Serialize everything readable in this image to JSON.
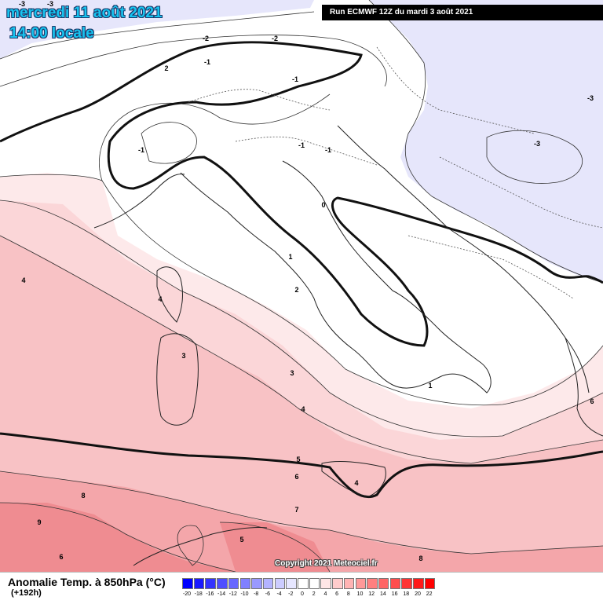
{
  "header": {
    "date": "mercredi 11 août 2021",
    "time": "14:00 locale",
    "run": "Run ECMWF 12Z du mardi 3 août 2021"
  },
  "copyright": "Copyright 2021 Meteociel.fr",
  "legend": {
    "title": "Anomalie Temp. à 850hPa (°C)",
    "subtitle": "(+192h)",
    "ticks": [
      "-20",
      "-18",
      "-16",
      "-14",
      "-12",
      "-10",
      "-8",
      "-6",
      "-4",
      "-2",
      "0",
      "2",
      "4",
      "6",
      "8",
      "10",
      "12",
      "14",
      "16",
      "18",
      "20",
      "22"
    ],
    "colors": [
      "#0000ff",
      "#1a1aff",
      "#3333ff",
      "#4d4dff",
      "#6666ff",
      "#8080ff",
      "#9999ff",
      "#b3b3ff",
      "#ccccff",
      "#e6e6ff",
      "#ffffff",
      "#ffffff",
      "#ffe6e6",
      "#ffcccc",
      "#ffb3b3",
      "#ff9999",
      "#ff8080",
      "#ff6666",
      "#ff4d4d",
      "#ff3333",
      "#ff1a1a",
      "#ff0000"
    ]
  },
  "contour_labels": [
    {
      "text": "-3"
    },
    {
      "text": "-3"
    },
    {
      "text": "-2"
    },
    {
      "text": "-2"
    },
    {
      "text": "-1"
    },
    {
      "text": "-1"
    },
    {
      "text": "-1"
    },
    {
      "text": "-1"
    },
    {
      "text": "-1"
    },
    {
      "text": "-3"
    },
    {
      "text": "-3"
    },
    {
      "text": "0"
    },
    {
      "text": "1"
    },
    {
      "text": "1"
    },
    {
      "text": "2"
    },
    {
      "text": "2"
    },
    {
      "text": "3"
    },
    {
      "text": "3"
    },
    {
      "text": "4"
    },
    {
      "text": "4"
    },
    {
      "text": "4"
    },
    {
      "text": "4"
    },
    {
      "text": "5"
    },
    {
      "text": "6"
    },
    {
      "text": "6"
    },
    {
      "text": "7"
    },
    {
      "text": "8"
    },
    {
      "text": "8"
    },
    {
      "text": "9"
    },
    {
      "text": "6"
    },
    {
      "text": "5"
    }
  ]
}
